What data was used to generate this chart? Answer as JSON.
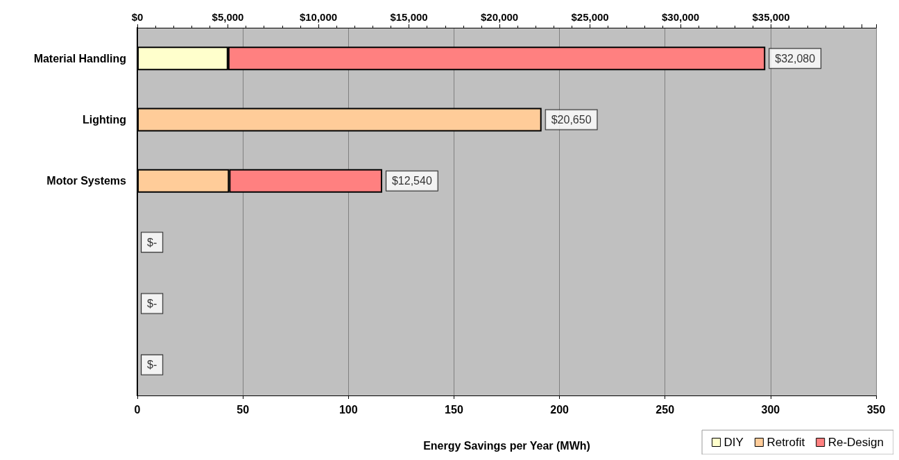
{
  "chart_data": {
    "type": "bar",
    "orientation": "horizontal",
    "stacked": true,
    "categories": [
      "Material Handling",
      "Lighting",
      "Motor Systems",
      null,
      null,
      null
    ],
    "series": [
      {
        "name": "DIY",
        "color": "#ffffcc",
        "values": [
          43,
          null,
          null,
          null,
          null,
          null
        ]
      },
      {
        "name": "Retrofit",
        "color": "#ffcc99",
        "values": [
          null,
          191.5,
          43.5,
          null,
          null,
          null
        ]
      },
      {
        "name": "Re-Design",
        "color": "#ff8080",
        "values": [
          254.5,
          null,
          72.5,
          null,
          null,
          null
        ]
      }
    ],
    "annotations": [
      {
        "text": "$32,080",
        "x": 297.5,
        "y": "Material Handling"
      },
      {
        "text": "$20,650",
        "x": 191.5,
        "y": "Lighting"
      },
      {
        "text": "$12,540",
        "x": 116,
        "y": "Motor Systems"
      },
      "$-",
      "$-",
      "$-"
    ],
    "xlabel": "Energy Savings per Year (MWh)",
    "xlim": [
      0,
      350
    ],
    "xticks": [
      0,
      50,
      100,
      150,
      200,
      250,
      300,
      350
    ],
    "x2lim": [
      0,
      40800
    ],
    "x2ticks": [
      {
        "value": 0,
        "label": "$0"
      },
      {
        "value": 5000,
        "label": "$5,000"
      },
      {
        "value": 10000,
        "label": "$10,000"
      },
      {
        "value": 15000,
        "label": "$15,000"
      },
      {
        "value": 20000,
        "label": "$20,000"
      },
      {
        "value": 25000,
        "label": "$25,000"
      },
      {
        "value": 30000,
        "label": "$30,000"
      },
      {
        "value": 35000,
        "label": "$35,000"
      }
    ],
    "grid": "x",
    "legend": "bottom right"
  }
}
